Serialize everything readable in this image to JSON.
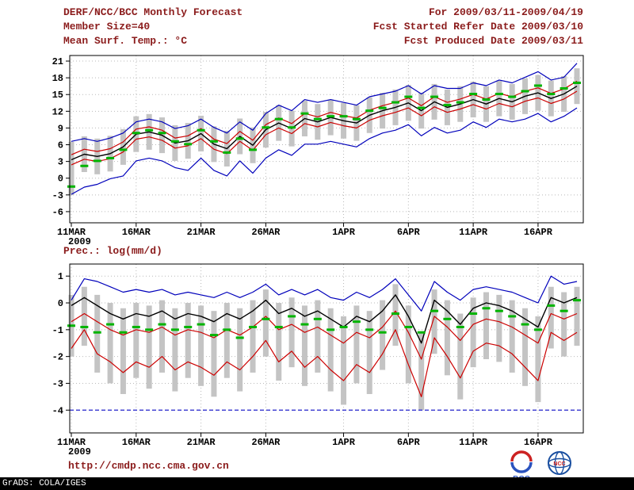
{
  "header": {
    "title": "DERF/NCC/BCC Monthly Forecast",
    "member_size": "Member Size=40",
    "var_label": "Mean Surf. Temp.: °C",
    "range": "For 2009/03/11-2009/04/19",
    "refer": "Fcst Started Refer Date 2009/03/10",
    "produced": "Fcst Produced Date 2009/03/11"
  },
  "precip_label": "Prec.: log(mm/d)",
  "footer": {
    "url": "http://cmdp.ncc.cma.gov.cn",
    "credit": "GrADS: COLA/IGES"
  },
  "logos": {
    "bcc": "BCC",
    "ncc": "NCC"
  },
  "colors": {
    "header_text": "#8b1c1c",
    "frame": "#000000",
    "grid": "#b9b9b9",
    "bar": "#c4c4c4",
    "envelope_blue": "#0000bb",
    "quartile_red": "#cc0000",
    "mean_black": "#000000",
    "obs_green": "#00b400",
    "ref_blue": "#2222cc"
  },
  "chart_data": [
    {
      "type": "line",
      "title": "Mean Surf. Temp.: °C",
      "n_points": 40,
      "x_start_label": "11MAR",
      "year_label": "2009",
      "x_ticks": [
        {
          "index": 0,
          "label": "11MAR"
        },
        {
          "index": 5,
          "label": "16MAR"
        },
        {
          "index": 10,
          "label": "21MAR"
        },
        {
          "index": 15,
          "label": "26MAR"
        },
        {
          "index": 21,
          "label": "1APR"
        },
        {
          "index": 26,
          "label": "6APR"
        },
        {
          "index": 31,
          "label": "11APR"
        },
        {
          "index": 36,
          "label": "16APR"
        }
      ],
      "ylim": [
        -8,
        22
      ],
      "y_ticks": [
        -6,
        -3,
        0,
        3,
        6,
        9,
        12,
        15,
        18,
        21
      ],
      "series": [
        {
          "name": "ensemble max",
          "color": "#0000bb",
          "width": 1.2,
          "values": [
            6.6,
            7.1,
            6.6,
            7.2,
            8.1,
            10.1,
            10.6,
            10.1,
            8.9,
            9.4,
            10.6,
            9.1,
            8.1,
            10.1,
            8.6,
            11.6,
            13.1,
            12.1,
            14.1,
            13.6,
            14.1,
            13.6,
            13.1,
            14.6,
            15.1,
            15.6,
            16.6,
            15.1,
            16.6,
            16.1,
            16.1,
            17.1,
            16.6,
            17.6,
            17.1,
            18.1,
            19.1,
            17.6,
            18.1,
            20.6
          ]
        },
        {
          "name": "ensemble min",
          "color": "#0000bb",
          "width": 1.2,
          "values": [
            -2.9,
            -1.6,
            -1.1,
            -0.1,
            0.4,
            3.1,
            3.6,
            3.1,
            1.9,
            1.4,
            3.6,
            1.4,
            0.4,
            3.1,
            0.9,
            3.6,
            5.1,
            4.1,
            6.1,
            6.1,
            6.6,
            6.1,
            5.6,
            7.1,
            8.1,
            8.6,
            9.6,
            7.6,
            9.1,
            8.1,
            8.6,
            10.1,
            9.1,
            10.6,
            10.1,
            10.6,
            11.6,
            10.1,
            11.1,
            12.6
          ]
        },
        {
          "name": "upper quartile",
          "color": "#cc0000",
          "width": 1.2,
          "values": [
            4.2,
            5.2,
            4.8,
            5.3,
            6.5,
            8.8,
            9.2,
            8.6,
            7.2,
            7.6,
            8.9,
            7.0,
            6.2,
            8.4,
            6.8,
            9.6,
            10.8,
            9.8,
            11.6,
            11.0,
            11.8,
            11.2,
            10.8,
            12.2,
            13.0,
            13.6,
            14.4,
            13.0,
            14.6,
            13.6,
            14.2,
            15.0,
            14.2,
            15.2,
            14.6,
            15.6,
            16.2,
            15.2,
            16.0,
            17.4
          ]
        },
        {
          "name": "lower quartile",
          "color": "#cc0000",
          "width": 1.2,
          "values": [
            2.4,
            3.4,
            3.0,
            3.5,
            4.7,
            7.0,
            7.4,
            6.8,
            5.4,
            5.8,
            7.1,
            5.2,
            4.4,
            6.6,
            5.0,
            7.8,
            9.0,
            8.0,
            9.8,
            9.2,
            10.0,
            9.4,
            9.0,
            10.4,
            11.2,
            11.8,
            12.6,
            11.2,
            12.8,
            11.8,
            12.4,
            13.2,
            12.4,
            13.4,
            12.8,
            13.8,
            14.4,
            13.4,
            14.2,
            15.6
          ]
        },
        {
          "name": "ensemble mean",
          "color": "#000000",
          "width": 1.4,
          "values": [
            3.3,
            4.3,
            3.9,
            4.4,
            5.6,
            7.9,
            8.3,
            7.7,
            6.3,
            6.7,
            8.0,
            6.1,
            5.3,
            7.5,
            5.9,
            8.7,
            9.9,
            8.9,
            10.7,
            10.1,
            10.9,
            10.3,
            9.9,
            11.3,
            12.1,
            12.7,
            13.5,
            12.1,
            13.7,
            12.7,
            13.3,
            14.1,
            13.3,
            14.3,
            13.7,
            14.7,
            15.3,
            14.3,
            15.1,
            16.5
          ]
        }
      ],
      "bars": {
        "name": "ensemble spread",
        "color": "#c4c4c4",
        "low": [
          -3.0,
          1.1,
          0.7,
          1.2,
          2.4,
          4.7,
          5.1,
          4.5,
          3.1,
          3.5,
          4.8,
          2.9,
          2.1,
          4.3,
          2.7,
          5.5,
          6.7,
          5.7,
          7.5,
          6.9,
          7.7,
          7.1,
          6.7,
          8.1,
          8.9,
          9.5,
          10.3,
          8.9,
          10.5,
          9.5,
          10.1,
          10.9,
          10.1,
          11.1,
          10.5,
          11.5,
          12.1,
          11.1,
          11.9,
          13.3
        ],
        "high": [
          6.5,
          7.5,
          7.1,
          7.6,
          8.8,
          11.1,
          11.5,
          10.9,
          9.5,
          9.9,
          11.2,
          9.3,
          8.5,
          10.7,
          9.1,
          11.9,
          13.1,
          12.1,
          13.9,
          13.3,
          14.1,
          13.5,
          13.1,
          14.5,
          15.3,
          15.9,
          16.7,
          15.3,
          16.9,
          15.9,
          16.5,
          17.3,
          16.5,
          17.5,
          16.9,
          17.9,
          18.5,
          17.5,
          18.3,
          19.7
        ]
      },
      "dashes": {
        "name": "observation",
        "color": "#00b400",
        "values": [
          -1.5,
          2.2,
          3.1,
          3.6,
          5.1,
          8.1,
          8.6,
          8.1,
          6.6,
          6.1,
          8.6,
          6.6,
          4.6,
          7.1,
          5.1,
          9.1,
          10.6,
          9.1,
          11.6,
          10.6,
          11.1,
          11.1,
          10.6,
          12.1,
          12.6,
          13.6,
          14.6,
          12.6,
          14.6,
          13.1,
          13.6,
          15.1,
          14.1,
          15.1,
          14.6,
          15.6,
          16.6,
          15.1,
          16.1,
          17.1
        ]
      }
    },
    {
      "type": "line",
      "title": "Prec.: log(mm/d)",
      "n_points": 40,
      "x_start_label": "11MAR",
      "year_label": "2009",
      "x_ticks": [
        {
          "index": 0,
          "label": "11MAR"
        },
        {
          "index": 5,
          "label": "16MAR"
        },
        {
          "index": 10,
          "label": "21MAR"
        },
        {
          "index": 15,
          "label": "26MAR"
        },
        {
          "index": 21,
          "label": "1APR"
        },
        {
          "index": 26,
          "label": "6APR"
        },
        {
          "index": 31,
          "label": "11APR"
        },
        {
          "index": 36,
          "label": "16APR"
        }
      ],
      "ylim": [
        -4.85,
        1.45
      ],
      "y_ticks": [
        1,
        0,
        -1,
        -2,
        -3,
        -4
      ],
      "ref_line": {
        "value": -4,
        "color": "#2222cc",
        "style": "dashed"
      },
      "series": [
        {
          "name": "ensemble max",
          "color": "#0000bb",
          "width": 1.2,
          "values": [
            0.1,
            0.9,
            0.8,
            0.6,
            0.4,
            0.5,
            0.4,
            0.5,
            0.3,
            0.4,
            0.3,
            0.2,
            0.4,
            0.2,
            0.4,
            0.7,
            0.3,
            0.5,
            0.3,
            0.5,
            0.2,
            0.1,
            0.4,
            0.2,
            0.5,
            0.9,
            0.3,
            -0.3,
            0.8,
            0.4,
            0.1,
            0.5,
            0.6,
            0.5,
            0.4,
            0.2,
            0.0,
            1.0,
            0.7,
            0.8
          ]
        },
        {
          "name": "ensemble mean",
          "color": "#000000",
          "width": 1.4,
          "values": [
            -0.1,
            0.2,
            -0.1,
            -0.4,
            -0.6,
            -0.4,
            -0.5,
            -0.3,
            -0.6,
            -0.4,
            -0.5,
            -0.7,
            -0.4,
            -0.6,
            -0.3,
            0.1,
            -0.4,
            -0.2,
            -0.5,
            -0.3,
            -0.6,
            -0.9,
            -0.5,
            -0.7,
            -0.3,
            0.3,
            -0.5,
            -1.5,
            0.1,
            -0.3,
            -0.8,
            -0.2,
            0.0,
            -0.1,
            -0.3,
            -0.6,
            -0.9,
            0.2,
            0.0,
            0.2
          ]
        },
        {
          "name": "upper quartile",
          "color": "#cc0000",
          "width": 1.2,
          "values": [
            -0.7,
            -0.4,
            -0.7,
            -1.0,
            -1.2,
            -1.0,
            -1.1,
            -0.9,
            -1.2,
            -1.0,
            -1.1,
            -1.3,
            -1.0,
            -1.2,
            -0.9,
            -0.5,
            -1.0,
            -0.8,
            -1.1,
            -0.9,
            -1.2,
            -1.5,
            -1.1,
            -1.3,
            -0.9,
            -0.3,
            -1.1,
            -2.1,
            -0.5,
            -0.9,
            -1.4,
            -0.8,
            -0.6,
            -0.7,
            -0.9,
            -1.2,
            -1.5,
            -0.4,
            -0.6,
            -0.4
          ]
        },
        {
          "name": "lower quartile",
          "color": "#cc0000",
          "width": 1.2,
          "values": [
            -1.7,
            -1.0,
            -1.9,
            -2.2,
            -2.6,
            -2.2,
            -2.4,
            -2.0,
            -2.5,
            -2.2,
            -2.4,
            -2.7,
            -2.2,
            -2.5,
            -2.0,
            -1.4,
            -2.2,
            -1.8,
            -2.4,
            -2.0,
            -2.5,
            -2.9,
            -2.3,
            -2.6,
            -1.9,
            -1.0,
            -2.3,
            -3.5,
            -1.3,
            -2.0,
            -2.8,
            -1.8,
            -1.5,
            -1.6,
            -1.9,
            -2.4,
            -2.9,
            -1.1,
            -1.4,
            -1.1
          ]
        }
      ],
      "bars": {
        "name": "ensemble spread",
        "color": "#c4c4c4",
        "low": [
          -2.0,
          -1.6,
          -2.6,
          -3.0,
          -3.4,
          -2.8,
          -3.2,
          -2.6,
          -3.3,
          -2.8,
          -3.1,
          -3.5,
          -2.8,
          -3.3,
          -2.6,
          -2.0,
          -2.9,
          -2.4,
          -3.1,
          -2.6,
          -3.3,
          -3.8,
          -3.0,
          -3.4,
          -2.5,
          -1.6,
          -3.0,
          -4.0,
          -1.9,
          -2.7,
          -3.6,
          -2.4,
          -2.1,
          -2.2,
          -2.6,
          -3.1,
          -3.7,
          -1.7,
          -2.0,
          -1.6
        ],
        "high": [
          0.3,
          0.6,
          0.3,
          0.0,
          -0.2,
          0.0,
          -0.1,
          0.1,
          -0.2,
          0.0,
          -0.1,
          -0.3,
          0.0,
          -0.2,
          0.1,
          0.5,
          0.0,
          0.2,
          -0.1,
          0.1,
          -0.2,
          -0.5,
          -0.1,
          -0.3,
          0.1,
          0.7,
          -0.1,
          -1.1,
          0.5,
          0.1,
          -0.4,
          0.2,
          0.4,
          0.3,
          0.1,
          -0.2,
          -0.5,
          0.6,
          0.4,
          0.6
        ]
      },
      "dashes": {
        "name": "observation",
        "color": "#00b400",
        "values": [
          -0.85,
          -0.9,
          -1.1,
          -0.8,
          -1.1,
          -0.9,
          -1.0,
          -0.8,
          -1.0,
          -0.9,
          -0.8,
          -1.2,
          -1.0,
          -1.3,
          -0.9,
          -0.6,
          -0.9,
          -0.5,
          -0.8,
          -0.6,
          -1.0,
          -0.9,
          -0.7,
          -1.0,
          -1.1,
          -0.4,
          -0.9,
          -1.1,
          -0.3,
          -0.6,
          -0.9,
          -0.4,
          -0.2,
          -0.3,
          -0.5,
          -0.8,
          -1.0,
          -0.1,
          -0.3,
          0.1
        ]
      }
    }
  ]
}
